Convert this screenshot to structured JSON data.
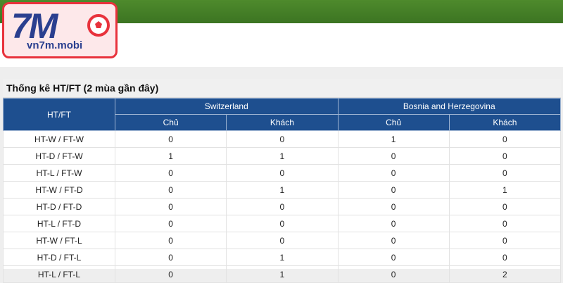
{
  "logo": {
    "brand": "7M",
    "domain": "vn7m.mobi"
  },
  "table": {
    "title": "Thống kê HT/FT (2 mùa gần đây)",
    "corner": "HT/FT",
    "teams": [
      "Switzerland",
      "Bosnia and Herzegovina"
    ],
    "subheaders": [
      "Chủ",
      "Khách",
      "Chủ",
      "Khách"
    ],
    "rows": [
      {
        "label": "HT-W / FT-W",
        "values": [
          0,
          0,
          1,
          0
        ]
      },
      {
        "label": "HT-D / FT-W",
        "values": [
          1,
          1,
          0,
          0
        ]
      },
      {
        "label": "HT-L / FT-W",
        "values": [
          0,
          0,
          0,
          0
        ]
      },
      {
        "label": "HT-W / FT-D",
        "values": [
          0,
          1,
          0,
          1
        ]
      },
      {
        "label": "HT-D / FT-D",
        "values": [
          0,
          0,
          0,
          0
        ]
      },
      {
        "label": "HT-L / FT-D",
        "values": [
          0,
          0,
          0,
          0
        ]
      },
      {
        "label": "HT-W / FT-L",
        "values": [
          0,
          0,
          0,
          0
        ]
      },
      {
        "label": "HT-D / FT-L",
        "values": [
          0,
          1,
          0,
          0
        ]
      },
      {
        "label": "HT-L / FT-L",
        "values": [
          0,
          1,
          0,
          2
        ]
      }
    ]
  }
}
